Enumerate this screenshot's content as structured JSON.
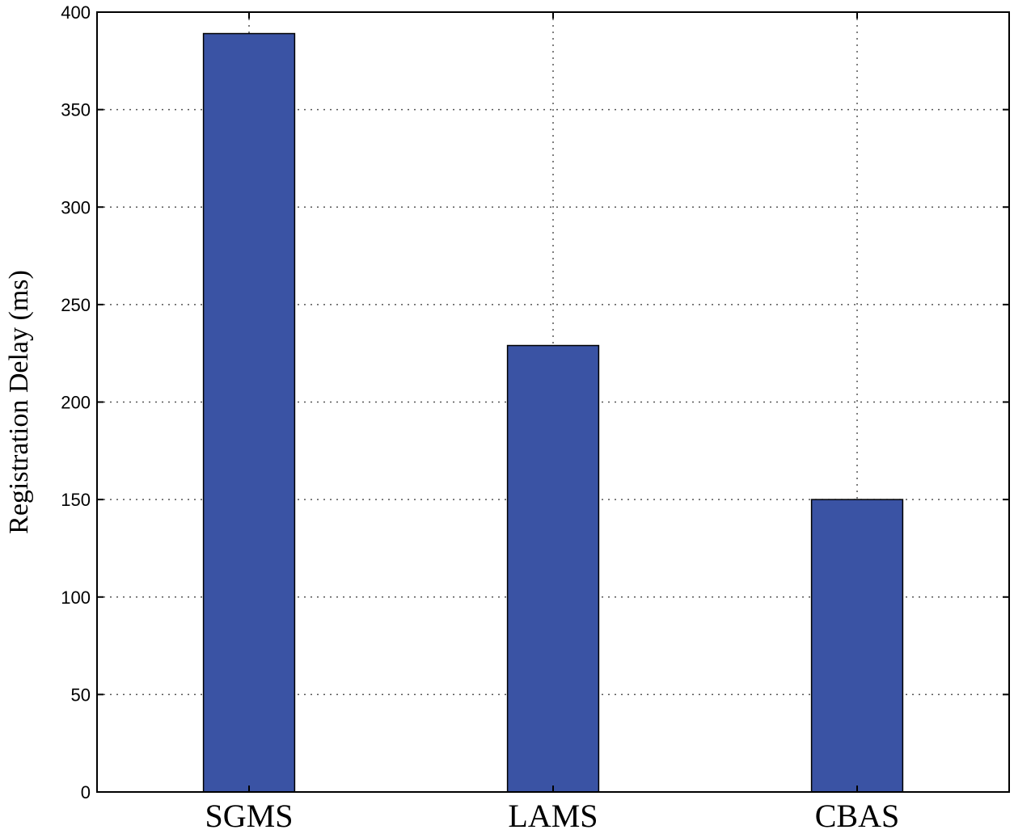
{
  "chart_data": {
    "type": "bar",
    "title": "",
    "xlabel": "",
    "ylabel": "Registration Delay  (ms)",
    "categories": [
      "SGMS",
      "LAMS",
      "CBAS"
    ],
    "values": [
      389,
      229,
      150
    ],
    "ylim": [
      0,
      400
    ],
    "yticks": [
      0,
      50,
      100,
      150,
      200,
      250,
      300,
      350,
      400
    ],
    "grid": true,
    "bar_color": "#3a53a4"
  }
}
